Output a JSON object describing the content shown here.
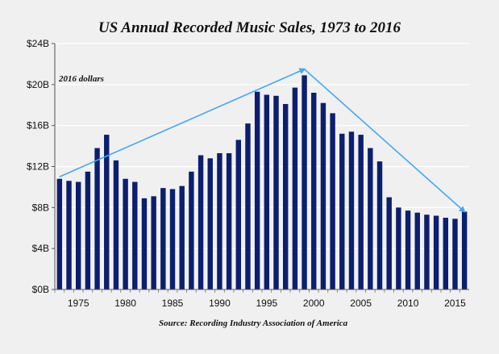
{
  "chart_data": {
    "type": "bar",
    "title": "US Annual Recorded Music Sales, 1973 to 2016",
    "annotation": "2016 dollars",
    "source": "Source: Recording Industry Association of America",
    "xlabel": "",
    "ylabel": "",
    "ylim": [
      0,
      24
    ],
    "y_ticks": [
      0,
      4,
      8,
      12,
      16,
      20,
      24
    ],
    "y_tick_labels": [
      "$0B",
      "$4B",
      "$8B",
      "$12B",
      "$16B",
      "$20B",
      "$24B"
    ],
    "x_ticks": [
      1975,
      1980,
      1985,
      1990,
      1995,
      2000,
      2005,
      2010,
      2015
    ],
    "x_tick_labels": [
      "1975",
      "1980",
      "1985",
      "1990",
      "1995",
      "2000",
      "2005",
      "2010",
      "2015"
    ],
    "grid": true,
    "bar_color": "#0c1f6e",
    "arrow_color": "#3fa9f5",
    "categories": [
      1973,
      1974,
      1975,
      1976,
      1977,
      1978,
      1979,
      1980,
      1981,
      1982,
      1983,
      1984,
      1985,
      1986,
      1987,
      1988,
      1989,
      1990,
      1991,
      1992,
      1993,
      1994,
      1995,
      1996,
      1997,
      1998,
      1999,
      2000,
      2001,
      2002,
      2003,
      2004,
      2005,
      2006,
      2007,
      2008,
      2009,
      2010,
      2011,
      2012,
      2013,
      2014,
      2015,
      2016
    ],
    "values": [
      10.8,
      10.6,
      10.5,
      11.5,
      13.8,
      15.1,
      12.6,
      10.8,
      10.5,
      8.9,
      9.1,
      9.9,
      9.8,
      10.1,
      11.5,
      13.1,
      12.8,
      13.3,
      13.3,
      14.6,
      16.2,
      19.3,
      19.0,
      18.9,
      18.1,
      19.7,
      20.9,
      19.2,
      18.2,
      17.2,
      15.2,
      15.4,
      15.1,
      13.8,
      12.5,
      9.0,
      8.0,
      7.7,
      7.5,
      7.3,
      7.2,
      7.0,
      6.9,
      7.6
    ],
    "arrows": [
      {
        "from": [
          1973,
          11.0
        ],
        "to": [
          1999,
          21.5
        ]
      },
      {
        "from": [
          1999,
          21.5
        ],
        "to": [
          2016,
          7.6
        ]
      }
    ]
  }
}
